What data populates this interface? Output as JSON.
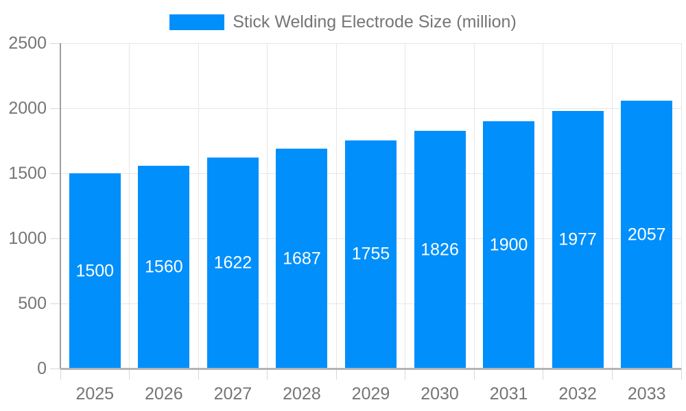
{
  "chart_data": {
    "type": "bar",
    "title": "Stick Welding Electrode Size (million)",
    "categories": [
      "2025",
      "2026",
      "2027",
      "2028",
      "2029",
      "2030",
      "2031",
      "2032",
      "2033"
    ],
    "values": [
      1500,
      1560,
      1622,
      1687,
      1755,
      1826,
      1900,
      1977,
      2057
    ],
    "series_name": "Stick Welding Electrode Size (million)",
    "xlabel": "",
    "ylabel": "",
    "ylim": [
      0,
      2500
    ],
    "ytick_step": 500,
    "ytick_labels": [
      "0",
      "500",
      "1000",
      "1500",
      "2000",
      "2500"
    ],
    "grid": true,
    "legend_position": "top",
    "bar_labels_visible": true,
    "colors": {
      "bar": "#008FFB",
      "bar_label_text": "#ffffff",
      "axis_text": "#757575",
      "legend_text": "#757575",
      "gridline": "#e6e6e6",
      "tick": "#d6d6d6",
      "axis_line": "#9e9e9e",
      "baseline": "#b3b3b3",
      "background": "#ffffff"
    }
  }
}
